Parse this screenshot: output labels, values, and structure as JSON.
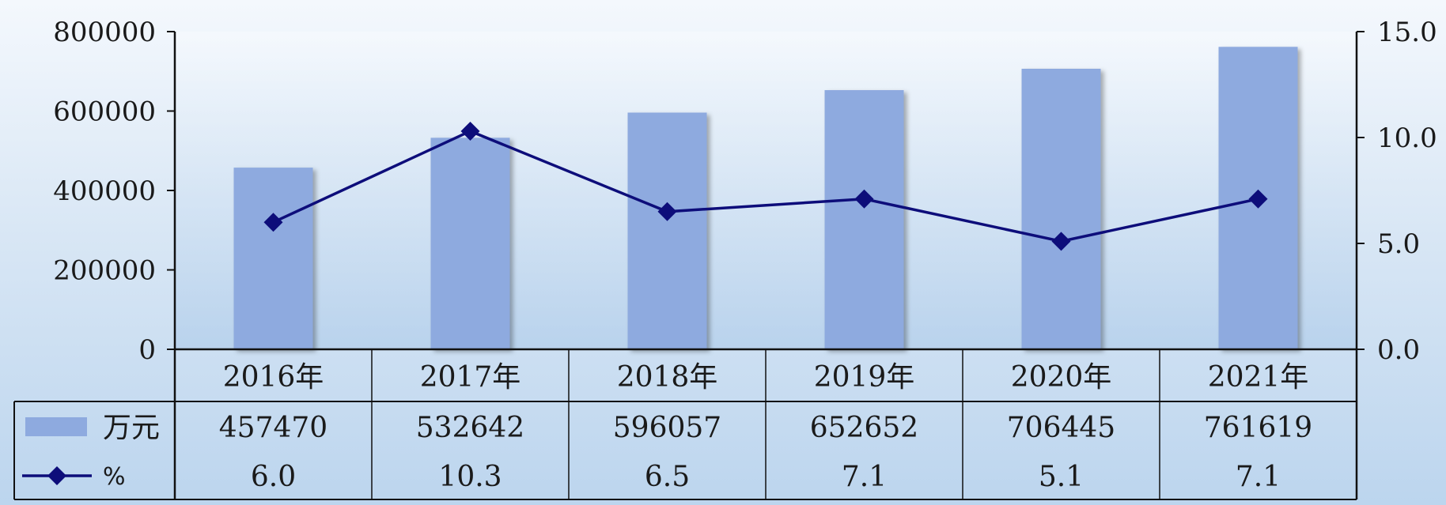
{
  "chart_data": {
    "type": "bar",
    "categories": [
      "2016年",
      "2017年",
      "2018年",
      "2019年",
      "2020年",
      "2021年"
    ],
    "series": [
      {
        "name": "万元",
        "type": "bar",
        "axis": "left",
        "color": "#8eaadf",
        "values": [
          457470,
          532642,
          596057,
          652652,
          706445,
          761619
        ],
        "table_labels": [
          "457470",
          "532642",
          "596057",
          "652652",
          "706445",
          "761619"
        ]
      },
      {
        "name": "%",
        "type": "line",
        "axis": "right",
        "color": "#0d0d7a",
        "marker": "diamond",
        "values": [
          6.0,
          10.3,
          6.5,
          7.1,
          5.1,
          7.1
        ],
        "table_labels": [
          "6.0",
          "10.3",
          "6.5",
          "7.1",
          "5.1",
          "7.1"
        ]
      }
    ],
    "y_left": {
      "ylim": [
        0,
        800000
      ],
      "ticks": [
        "0",
        "200000",
        "400000",
        "600000",
        "800000"
      ]
    },
    "y_right": {
      "ylim": [
        0,
        15
      ],
      "ticks": [
        "0.0",
        "5.0",
        "10.0",
        "15.0"
      ]
    },
    "legend": "data-table",
    "grid": false
  }
}
